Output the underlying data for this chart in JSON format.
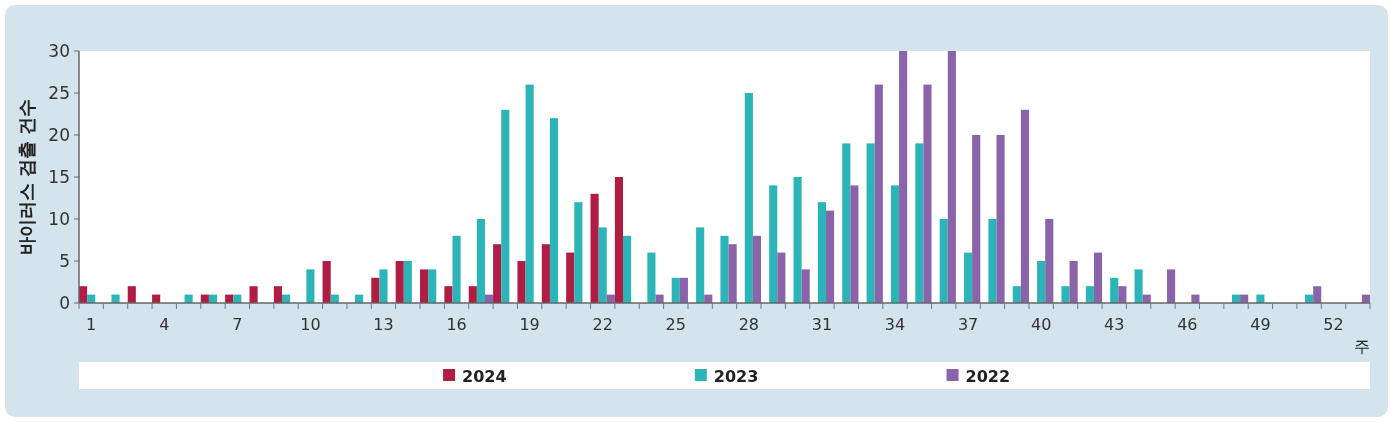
{
  "chart_data": {
    "type": "bar",
    "xlabel": "주",
    "ylabel": "바이러스 검출 건수",
    "categories": [
      "1",
      null,
      null,
      "4",
      null,
      null,
      "7",
      null,
      null,
      "10",
      null,
      null,
      "13",
      null,
      null,
      "16",
      null,
      null,
      "19",
      null,
      null,
      "22",
      null,
      null,
      "25",
      null,
      null,
      "28",
      null,
      null,
      "31",
      null,
      null,
      "34",
      null,
      null,
      "37",
      null,
      null,
      "40",
      null,
      null,
      "43",
      null,
      null,
      "46",
      null,
      null,
      "49",
      null,
      null,
      "52",
      null
    ],
    "series": [
      {
        "name": "2024",
        "color": "#b01c44",
        "values": [
          2,
          0,
          2,
          1,
          0,
          1,
          1,
          2,
          2,
          0,
          5,
          0,
          3,
          5,
          4,
          2,
          2,
          7,
          5,
          7,
          6,
          13,
          15,
          null,
          null,
          null,
          null,
          null,
          null,
          null,
          null,
          null,
          null,
          null,
          null,
          null,
          null,
          null,
          null,
          null,
          null,
          null,
          null,
          null,
          null,
          null,
          null,
          null,
          null,
          null,
          null,
          null,
          null
        ]
      },
      {
        "name": "2023",
        "color": "#2bb5b8",
        "values": [
          1,
          1,
          0,
          0,
          1,
          1,
          1,
          0,
          1,
          4,
          1,
          1,
          4,
          5,
          4,
          8,
          10,
          23,
          26,
          22,
          12,
          9,
          8,
          6,
          3,
          9,
          8,
          25,
          14,
          15,
          12,
          19,
          19,
          14,
          19,
          10,
          6,
          10,
          2,
          5,
          2,
          2,
          3,
          4,
          0,
          0,
          0,
          1,
          1,
          0,
          1,
          0,
          0
        ]
      },
      {
        "name": "2022",
        "color": "#8b63aa",
        "values": [
          0,
          0,
          0,
          0,
          0,
          0,
          0,
          0,
          0,
          0,
          0,
          0,
          0,
          0,
          0,
          0,
          1,
          0,
          0,
          0,
          0,
          1,
          0,
          1,
          3,
          1,
          7,
          8,
          6,
          4,
          11,
          14,
          26,
          30,
          26,
          30,
          20,
          20,
          23,
          10,
          5,
          6,
          2,
          1,
          4,
          1,
          0,
          1,
          0,
          0,
          2,
          0,
          1
        ]
      }
    ],
    "ylim": [
      0,
      30
    ],
    "yticks": [
      0,
      5,
      10,
      15,
      20,
      25,
      30
    ],
    "legend": "bottom"
  }
}
